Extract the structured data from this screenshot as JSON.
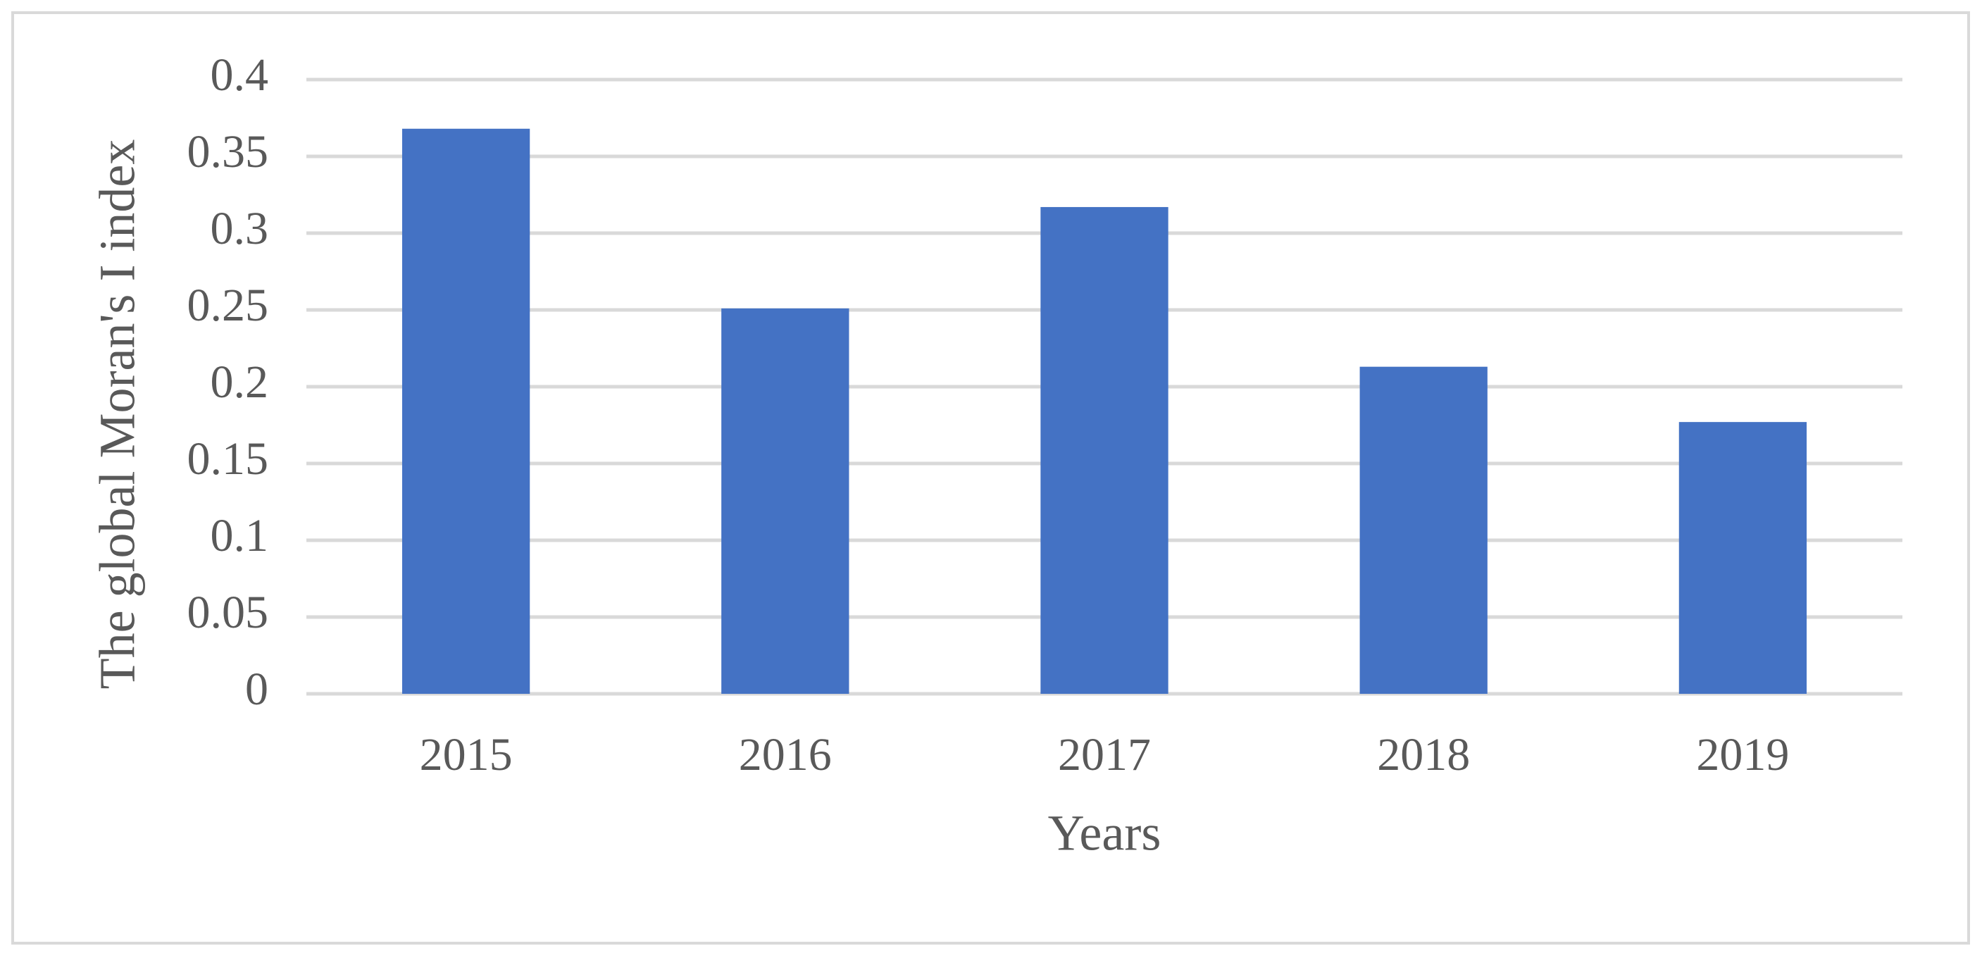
{
  "chart_data": {
    "type": "bar",
    "x_label": "Years",
    "y_label": "The global Moran's I index",
    "categories": [
      "2015",
      "2016",
      "2017",
      "2018",
      "2019"
    ],
    "values": [
      0.368,
      0.251,
      0.317,
      0.213,
      0.177
    ],
    "color": "#4472c4",
    "ylim": [
      0,
      0.4
    ],
    "yticks": [
      0,
      0.05,
      0.1,
      0.15,
      0.2,
      0.25,
      0.3,
      0.35,
      0.4
    ],
    "grid": true
  }
}
